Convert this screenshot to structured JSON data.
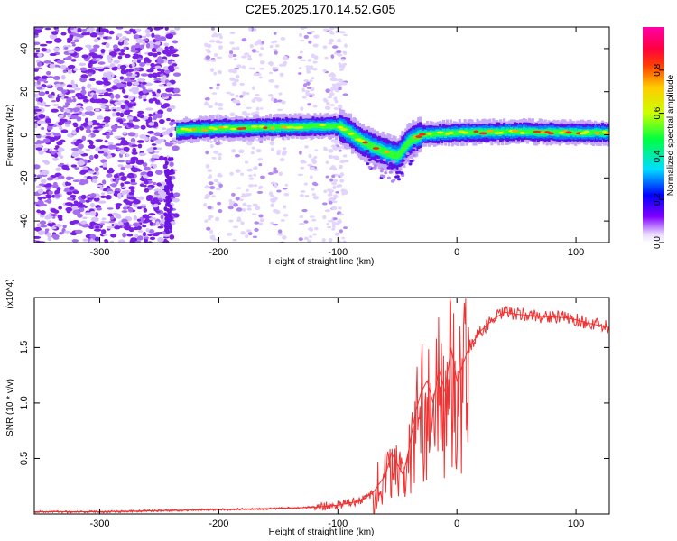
{
  "title": "C2E5.2025.170.14.52.G05",
  "chart_data": [
    {
      "type": "heatmap",
      "xlabel": "Height of straight line (km)",
      "ylabel": "Frequency (Hz)",
      "xlim": [
        -355,
        128
      ],
      "ylim": [
        -50,
        50
      ],
      "xticks": [
        "-300",
        "-200",
        "-100",
        "0",
        "100"
      ],
      "yticks": [
        "-40",
        "-20",
        "0",
        "20",
        "40"
      ],
      "colorbar": {
        "label": "Normalized spectral amplitude",
        "range": [
          0,
          1
        ],
        "ticks": [
          "0.0",
          "0.2",
          "0.4",
          "0.6",
          "0.8"
        ]
      },
      "ridge": {
        "x": [
          -235,
          -200,
          -150,
          -120,
          -100,
          -90,
          -80,
          -70,
          -60,
          -50,
          -40,
          -30,
          0,
          50,
          100,
          128
        ],
        "y": [
          2,
          3,
          3.5,
          4,
          4,
          1,
          -3,
          -6,
          -8,
          -10,
          -3,
          0,
          1,
          1.5,
          1,
          1
        ]
      }
    },
    {
      "type": "line",
      "xlabel": "Height of straight line (km)",
      "ylabel": "SNR (10 * v/v)",
      "multiplier": "(x10^4)",
      "xlim": [
        -355,
        128
      ],
      "ylim": [
        0,
        1.95
      ],
      "xticks": [
        "-300",
        "-200",
        "-100",
        "0",
        "100"
      ],
      "yticks": [
        "0.5",
        "1.0",
        "1.5"
      ],
      "color": "#ee3333",
      "series": [
        {
          "x": [
            -355,
            -300,
            -250,
            -200,
            -150,
            -120,
            -100,
            -80,
            -70,
            -60,
            -55,
            -50,
            -45,
            -40,
            -35,
            -30,
            -25,
            -20,
            -15,
            -10,
            -5,
            0,
            10,
            20,
            30,
            40,
            50,
            70,
            90,
            100,
            110,
            128
          ],
          "y": [
            0.02,
            0.02,
            0.03,
            0.04,
            0.05,
            0.06,
            0.08,
            0.12,
            0.2,
            0.35,
            0.55,
            0.45,
            0.35,
            0.6,
            0.9,
            1.1,
            1.2,
            1.0,
            1.3,
            1.1,
            1.5,
            1.2,
            1.5,
            1.65,
            1.75,
            1.82,
            1.8,
            1.78,
            1.77,
            1.75,
            1.72,
            1.68
          ]
        }
      ]
    }
  ]
}
